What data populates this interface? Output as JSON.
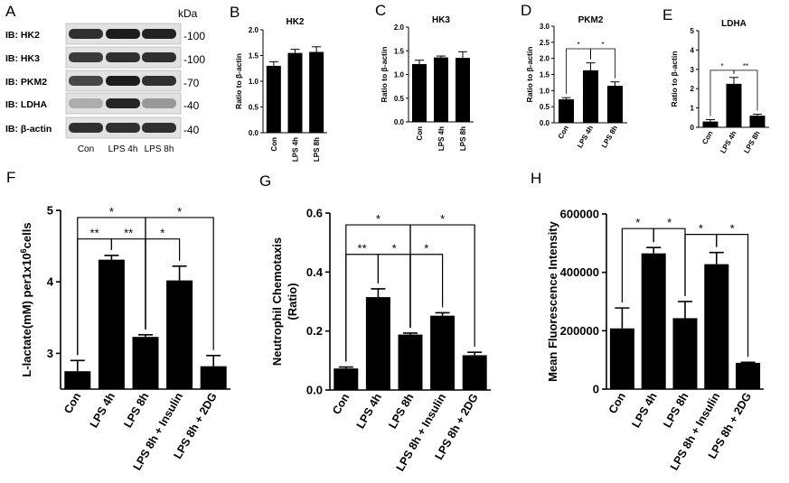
{
  "western_blot": {
    "panel_label": "A",
    "unit": "kDa",
    "lanes": [
      "Con",
      "LPS 4h",
      "LPS 8h"
    ],
    "rows": [
      {
        "label": "IB: HK2",
        "mw": "-100",
        "intensity": [
          0.85,
          0.95,
          0.92
        ]
      },
      {
        "label": "IB: HK3",
        "mw": "-100",
        "intensity": [
          0.8,
          0.85,
          0.85
        ]
      },
      {
        "label": "IB: PKM2",
        "mw": "-70",
        "intensity": [
          0.75,
          0.95,
          0.85
        ]
      },
      {
        "label": "IB: LDHA",
        "mw": "-40",
        "intensity": [
          0.25,
          0.9,
          0.35
        ]
      },
      {
        "label": "IB: β-actin",
        "mw": "-40",
        "intensity": [
          0.85,
          0.85,
          0.85
        ]
      }
    ]
  },
  "chart_data": [
    {
      "panel": "B",
      "type": "bar",
      "title": "HK2",
      "ylabel": "Ratio to β-actin",
      "ylim": [
        0,
        2.0
      ],
      "yticks": [
        "0.0",
        "0.5",
        "1.0",
        "1.5",
        "2.0"
      ],
      "categories": [
        "Con",
        "LPS 4h",
        "LPS 8h"
      ],
      "values": [
        1.3,
        1.55,
        1.57
      ],
      "errors": [
        0.08,
        0.07,
        0.1
      ],
      "significance": []
    },
    {
      "panel": "C",
      "type": "bar",
      "title": "HK3",
      "ylabel": "Ratio to β-actin",
      "ylim": [
        0,
        2.0
      ],
      "yticks": [
        "0.0",
        "0.5",
        "1.0",
        "1.5",
        "2.0"
      ],
      "categories": [
        "Con",
        "LPS 4h",
        "LPS 8h"
      ],
      "values": [
        1.22,
        1.36,
        1.35
      ],
      "errors": [
        0.08,
        0.03,
        0.13
      ],
      "significance": []
    },
    {
      "panel": "D",
      "type": "bar",
      "title": "PKM2",
      "ylabel": "Ratio to β-actin",
      "ylim": [
        0,
        3.0
      ],
      "yticks": [
        "0.0",
        "0.5",
        "1.0",
        "1.5",
        "2.0",
        "2.5",
        "3.0"
      ],
      "categories": [
        "Con",
        "LPS 4h",
        "LPS 8h"
      ],
      "values": [
        0.73,
        1.63,
        1.15
      ],
      "errors": [
        0.05,
        0.23,
        0.12
      ],
      "significance": [
        {
          "from": 0,
          "to": 1,
          "label": "*",
          "level": 2.3
        },
        {
          "from": 1,
          "to": 2,
          "label": "*",
          "level": 2.3
        }
      ]
    },
    {
      "panel": "E",
      "type": "bar",
      "title": "LDHA",
      "ylabel": "Ratio to β-actin",
      "ylim": [
        0,
        5
      ],
      "yticks": [
        "0",
        "1",
        "2",
        "3",
        "4",
        "5"
      ],
      "categories": [
        "Con",
        "LPS 4h",
        "LPS 8h"
      ],
      "values": [
        0.3,
        2.25,
        0.6
      ],
      "errors": [
        0.1,
        0.33,
        0.08
      ],
      "significance": [
        {
          "from": 0,
          "to": 1,
          "label": "*",
          "level": 2.95
        },
        {
          "from": 1,
          "to": 2,
          "label": "**",
          "level": 2.95
        }
      ]
    },
    {
      "panel": "F",
      "type": "bar",
      "title": "",
      "ylabel": "L-lactate(mM) per1x10^6cells",
      "ylim": [
        2.5,
        5.0
      ],
      "yticks": [
        "3",
        "4",
        "5"
      ],
      "categories": [
        "Con",
        "LPS 4h",
        "LPS 8h",
        "LPS 8h + Insulin",
        "LPS 8h + 2DG"
      ],
      "values": [
        2.75,
        4.31,
        3.23,
        4.02,
        2.82
      ],
      "errors": [
        0.15,
        0.06,
        0.03,
        0.2,
        0.15
      ],
      "significance": [
        {
          "from": 0,
          "to": 1,
          "label": "**",
          "level": 4.6
        },
        {
          "from": 1,
          "to": 2,
          "label": "**",
          "level": 4.6
        },
        {
          "from": 2,
          "to": 3,
          "label": "*",
          "level": 4.6
        },
        {
          "from": 0,
          "to": 2,
          "label": "*",
          "level": 4.9
        },
        {
          "from": 2,
          "to": 4,
          "label": "*",
          "level": 4.9
        }
      ]
    },
    {
      "panel": "G",
      "type": "bar",
      "title": "",
      "ylabel": "Neutrophil Chemotaxis (Ratio)",
      "ylim": [
        0,
        0.6
      ],
      "yticks": [
        "0.0",
        "0.2",
        "0.4",
        "0.6"
      ],
      "categories": [
        "Con",
        "LPS 4h",
        "LPS 8h",
        "LPS 8h + Insulin",
        "LPS 8h + 2DG"
      ],
      "values": [
        0.073,
        0.315,
        0.188,
        0.252,
        0.118
      ],
      "errors": [
        0.005,
        0.028,
        0.005,
        0.01,
        0.01
      ],
      "significance": [
        {
          "from": 0,
          "to": 1,
          "label": "**",
          "level": 0.46
        },
        {
          "from": 1,
          "to": 2,
          "label": "*",
          "level": 0.46
        },
        {
          "from": 2,
          "to": 3,
          "label": "*",
          "level": 0.46
        },
        {
          "from": 0,
          "to": 2,
          "label": "*",
          "level": 0.56
        },
        {
          "from": 2,
          "to": 4,
          "label": "*",
          "level": 0.56
        }
      ]
    },
    {
      "panel": "H",
      "type": "bar",
      "title": "",
      "ylabel": "Mean Fluorescence Intensity",
      "ylim": [
        0,
        600000
      ],
      "yticks": [
        "0",
        "200000",
        "400000",
        "600000"
      ],
      "categories": [
        "Con",
        "LPS 4h",
        "LPS 8h",
        "LPS 8h + Insulin",
        "LPS 8h + 2DG"
      ],
      "values": [
        208000,
        465000,
        243000,
        428000,
        90000
      ],
      "errors": [
        70000,
        20000,
        57000,
        40000,
        2000
      ],
      "significance": [
        {
          "from": 0,
          "to": 1,
          "label": "*",
          "level": 550000
        },
        {
          "from": 1,
          "to": 2,
          "label": "*",
          "level": 550000
        },
        {
          "from": 2,
          "to": 3,
          "label": "*",
          "level": 530000
        },
        {
          "from": 3,
          "to": 4,
          "label": "*",
          "level": 530000
        }
      ]
    }
  ],
  "colors": {
    "bar": "#000000",
    "blot_bg": "#e2e2e2",
    "band": "#111111"
  }
}
